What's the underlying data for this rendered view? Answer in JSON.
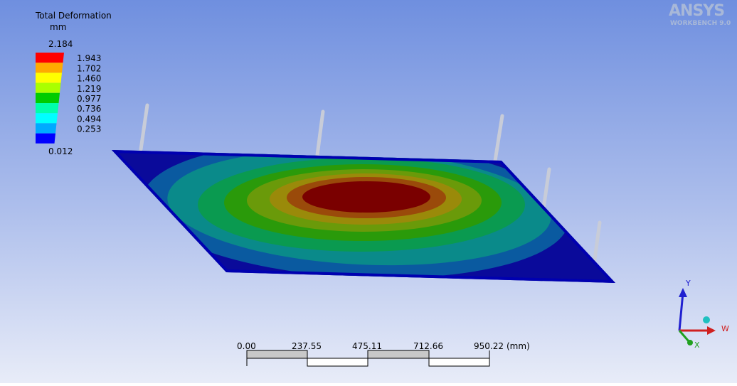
{
  "legend": {
    "title": "Total Deformation",
    "unit": "mm",
    "max": "2.184",
    "levels": [
      "1.943",
      "1.702",
      "1.460",
      "1.219",
      "0.977",
      "0.736",
      "0.494",
      "0.253"
    ],
    "min": "0.012"
  },
  "scale_bar": {
    "labels": [
      "0.00",
      "237.55",
      "475.11",
      "712.66",
      "950.22"
    ],
    "unit": "(mm)"
  },
  "logo": {
    "name": "ANSYS",
    "version": "WORKBENCH 9.0"
  },
  "triad": {
    "y": "Y",
    "w": "W",
    "x": "X"
  }
}
